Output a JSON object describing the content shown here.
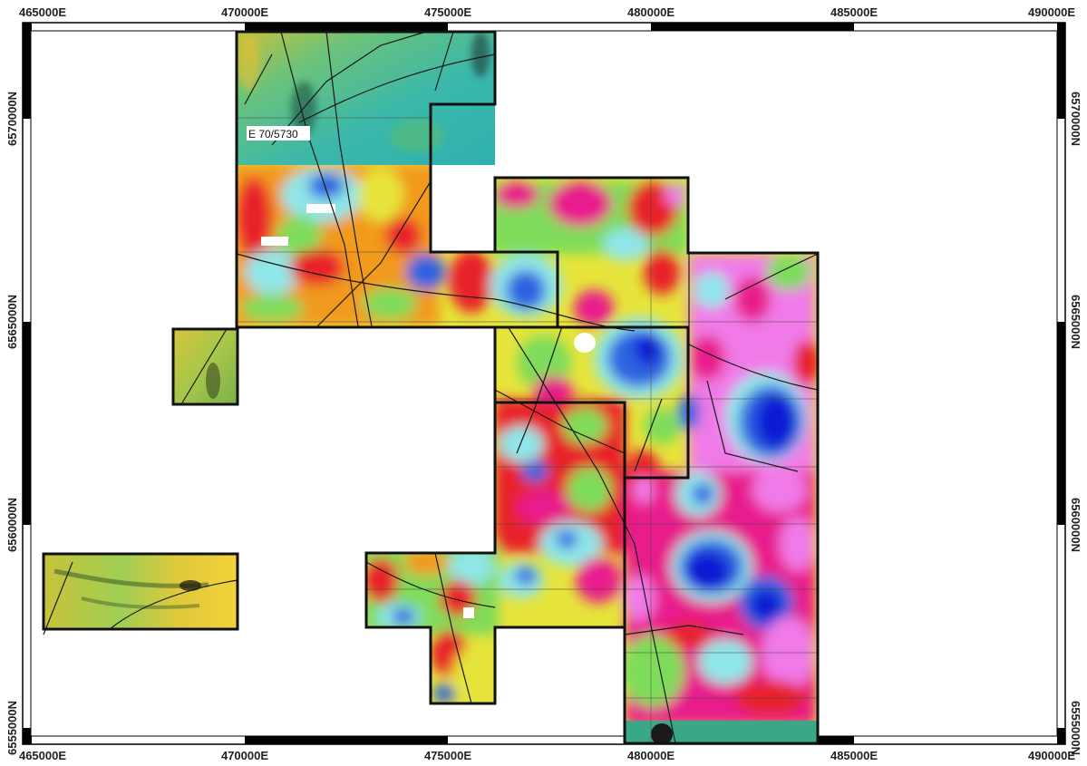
{
  "map": {
    "projection_units": "UTM metres",
    "easting_ticks": [
      "465000E",
      "470000E",
      "475000E",
      "480000E",
      "485000E",
      "490000E"
    ],
    "northing_ticks": [
      "6570000N",
      "6565000N",
      "6560000N",
      "6555000N"
    ],
    "easting_range": [
      465000,
      490000
    ],
    "northing_range": [
      6554500,
      6572200
    ],
    "tenement_label": "E 70/5730",
    "colors": {
      "frame": "#000000",
      "boundary": "#111111",
      "high_magenta": "#e81a8c",
      "high_red": "#e8232a",
      "orange": "#f29a1e",
      "yellow": "#e6e43a",
      "green": "#7fdc5a",
      "cyan": "#8fe6e8",
      "blue": "#2f63e0",
      "deep_blue": "#0c1ad4",
      "pink": "#f07ae8",
      "rtp_teal": "#38b8a5",
      "rtp_olive": "#b7c43a"
    }
  }
}
